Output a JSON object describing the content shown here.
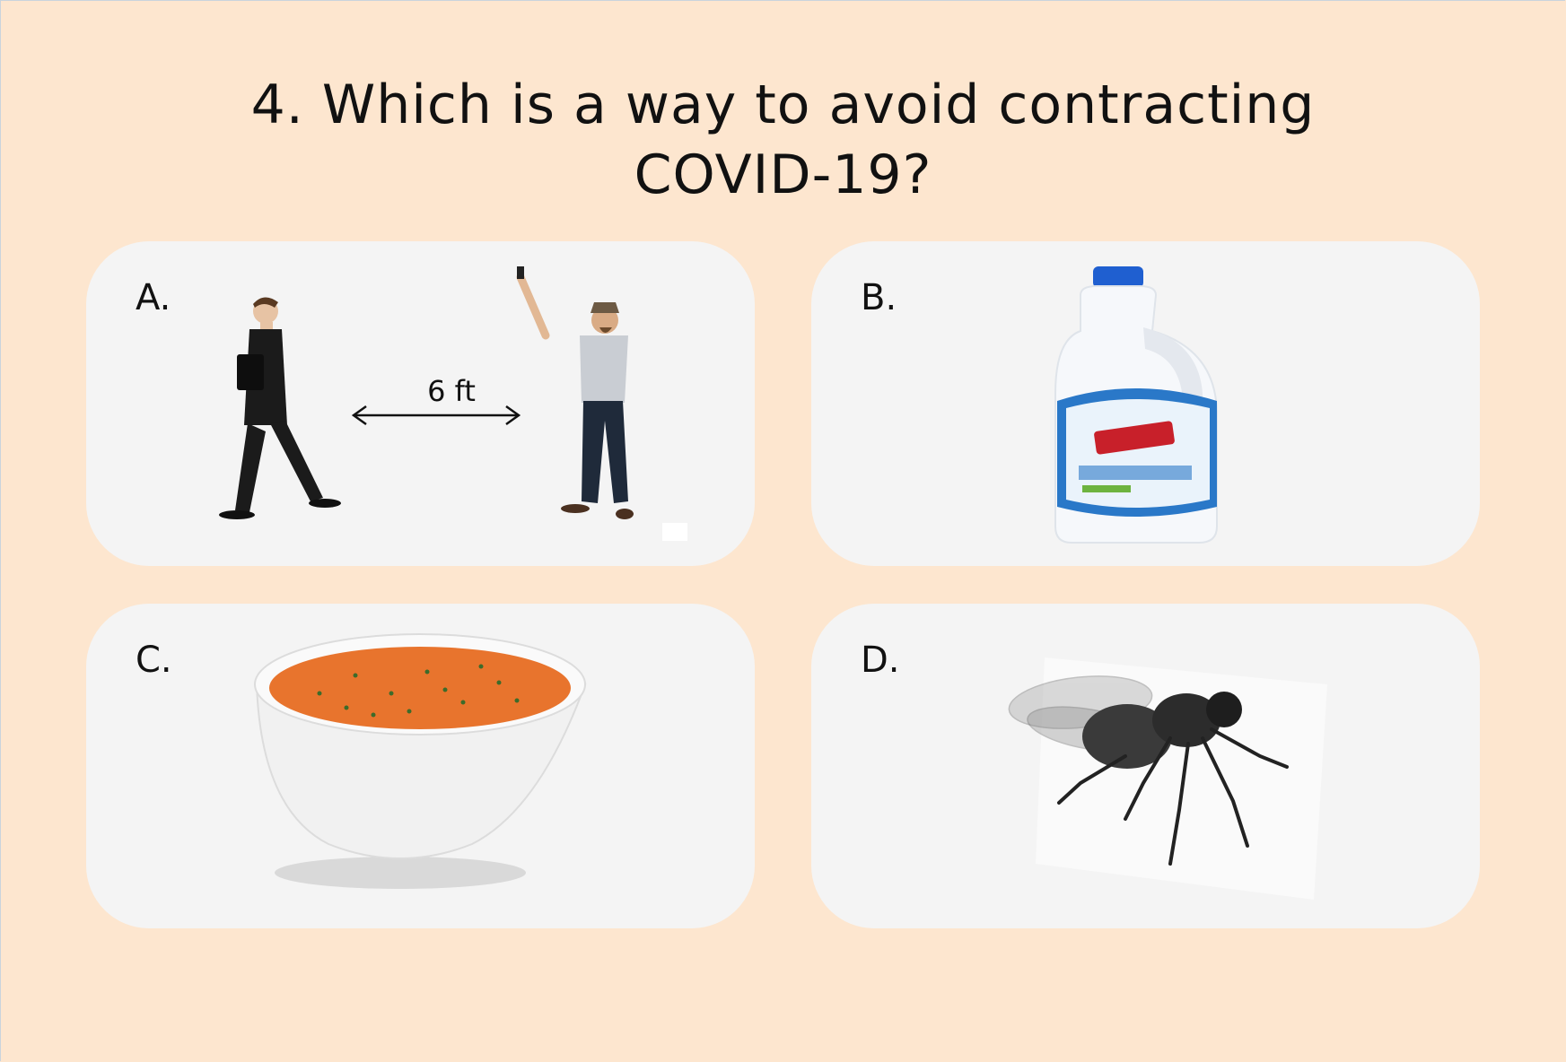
{
  "question": {
    "line1": "4. Which is a way to avoid contracting",
    "line2": "COVID-19?"
  },
  "options": [
    {
      "letter": "A.",
      "image": "two-people-distancing",
      "distance_label": "6 ft"
    },
    {
      "letter": "B.",
      "image": "bleach-bottle"
    },
    {
      "letter": "C.",
      "image": "soup-bowl"
    },
    {
      "letter": "D.",
      "image": "housefly"
    }
  ],
  "colors": {
    "background": "#fde6cf",
    "card": "#f4f4f4",
    "soup": "#e8742d",
    "bottle_cap": "#1f5fd0",
    "label_blue": "#2a78c8"
  }
}
